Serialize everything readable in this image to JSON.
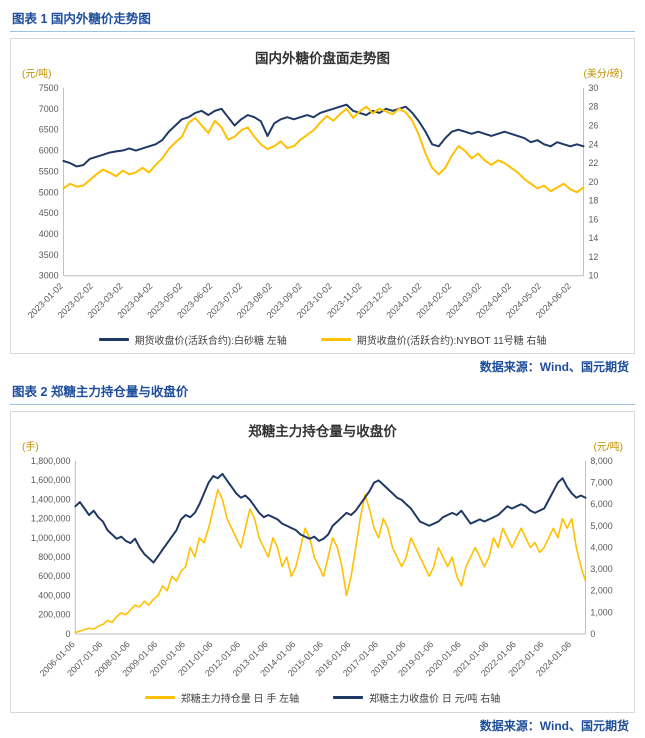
{
  "page": {
    "figure1_heading": "图表 1 国内外糖价走势图",
    "figure2_heading": "图表 2 郑糖主力持仓量与收盘价",
    "source1": "数据来源：Wind、国元期货",
    "source2": "数据来源：Wind、国元期货"
  },
  "colors": {
    "navy": "#1F3864",
    "gold": "#FFC000",
    "heading_blue": "#1F4E9C",
    "rule_blue": "#9CC2E5",
    "axis_gray": "#BFBFBF"
  },
  "chart_data": [
    {
      "type": "line",
      "title": "国内外糖价盘面走势图",
      "grid": false,
      "legend_position": "bottom",
      "left_axis": {
        "unit": "(元/吨)",
        "min": 3000,
        "max": 7500,
        "tick_values": [
          3000,
          3500,
          4000,
          4500,
          5000,
          5500,
          6000,
          6500,
          7000,
          7500
        ],
        "tick_labels": [
          "3000",
          "3500",
          "4000",
          "4500",
          "5000",
          "5500",
          "6000",
          "6500",
          "7000",
          "7500"
        ]
      },
      "right_axis": {
        "unit": "(美分/磅)",
        "min": 10,
        "max": 30,
        "tick_values": [
          10,
          12,
          14,
          16,
          18,
          20,
          22,
          24,
          26,
          28,
          30
        ],
        "tick_labels": [
          "10",
          "12",
          "14",
          "16",
          "18",
          "20",
          "22",
          "24",
          "26",
          "28",
          "30"
        ]
      },
      "x_labels": [
        "2023-01-02",
        "2023-02-02",
        "2023-03-02",
        "2023-04-02",
        "2023-05-02",
        "2023-06-02",
        "2023-07-02",
        "2023-08-02",
        "2023-09-02",
        "2023-10-02",
        "2023-11-02",
        "2023-12-02",
        "2024-01-02",
        "2024-02-02",
        "2024-03-02",
        "2024-04-02",
        "2024-05-02",
        "2024-06-02"
      ],
      "series": [
        {
          "name": "期货收盘价(活跃合约):白砂糖 左轴",
          "axis": "left",
          "color": "#1F3864",
          "width": 2,
          "values": [
            5750,
            5700,
            5620,
            5650,
            5800,
            5850,
            5900,
            5950,
            5980,
            6000,
            6050,
            6000,
            6050,
            6100,
            6150,
            6250,
            6450,
            6600,
            6750,
            6800,
            6900,
            6950,
            6850,
            6950,
            7000,
            6800,
            6600,
            6750,
            6850,
            6800,
            6700,
            6350,
            6650,
            6750,
            6800,
            6750,
            6800,
            6850,
            6800,
            6900,
            6950,
            7000,
            7050,
            7100,
            6950,
            6900,
            6850,
            6950,
            6900,
            7000,
            6950,
            7000,
            7050,
            6900,
            6700,
            6450,
            6150,
            6100,
            6300,
            6450,
            6500,
            6450,
            6400,
            6450,
            6400,
            6350,
            6400,
            6450,
            6400,
            6350,
            6300,
            6200,
            6250,
            6150,
            6100,
            6200,
            6150,
            6100,
            6150,
            6100
          ]
        },
        {
          "name": "期货收盘价(活跃合约):NYBOT 11号糖 右轴",
          "axis": "right",
          "color": "#FFC000",
          "width": 2,
          "values": [
            19.3,
            19.8,
            19.5,
            19.6,
            20.2,
            20.8,
            21.3,
            21.0,
            20.6,
            21.2,
            20.8,
            21.0,
            21.5,
            21.0,
            21.8,
            22.5,
            23.5,
            24.2,
            24.8,
            26.3,
            26.8,
            26.0,
            25.2,
            26.5,
            25.8,
            24.5,
            24.8,
            25.5,
            25.8,
            24.8,
            24.0,
            23.5,
            23.8,
            24.3,
            23.6,
            23.8,
            24.5,
            25.0,
            25.5,
            26.3,
            27.0,
            26.5,
            27.2,
            27.8,
            26.8,
            27.5,
            28.0,
            27.3,
            27.8,
            27.5,
            27.2,
            27.8,
            27.4,
            26.5,
            25.0,
            23.0,
            21.5,
            20.8,
            21.5,
            22.8,
            23.8,
            23.3,
            22.5,
            23.0,
            22.3,
            21.8,
            22.3,
            22.0,
            21.5,
            21.0,
            20.3,
            19.8,
            19.3,
            19.6,
            19.0,
            19.4,
            19.8,
            19.2,
            18.9,
            19.4
          ]
        }
      ]
    },
    {
      "type": "line",
      "title": "郑糖主力持仓量与收盘价",
      "grid": false,
      "legend_position": "bottom",
      "left_axis": {
        "unit": "(手)",
        "min": 0,
        "max": 1800000,
        "tick_values": [
          0,
          200000,
          400000,
          600000,
          800000,
          1000000,
          1200000,
          1400000,
          1600000,
          1800000
        ],
        "tick_labels": [
          "0",
          "200,000",
          "400,000",
          "600,000",
          "800,000",
          "1,000,000",
          "1,200,000",
          "1,400,000",
          "1,600,000",
          "1,800,000"
        ]
      },
      "right_axis": {
        "unit": "(元/吨)",
        "min": 0,
        "max": 8000,
        "tick_values": [
          0,
          1000,
          2000,
          3000,
          4000,
          5000,
          6000,
          7000,
          8000
        ],
        "tick_labels": [
          "0",
          "1,000",
          "2,000",
          "3,000",
          "4,000",
          "5,000",
          "6,000",
          "7,000",
          "8,000"
        ]
      },
      "x_labels": [
        "2006-01-06",
        "2007-01-06",
        "2008-01-06",
        "2009-01-06",
        "2010-01-06",
        "2011-01-06",
        "2012-01-06",
        "2013-01-06",
        "2014-01-06",
        "2015-01-06",
        "2016-01-06",
        "2017-01-06",
        "2018-01-06",
        "2019-01-06",
        "2020-01-06",
        "2021-01-06",
        "2022-01-06",
        "2023-01-06",
        "2024-01-06"
      ],
      "series": [
        {
          "name": "郑糖主力持仓量 日 手 左轴",
          "axis": "left",
          "color": "#FFC000",
          "width": 1.6,
          "values": [
            15000,
            30000,
            45000,
            60000,
            50000,
            80000,
            100000,
            140000,
            120000,
            180000,
            220000,
            200000,
            250000,
            300000,
            280000,
            340000,
            300000,
            360000,
            400000,
            500000,
            450000,
            600000,
            550000,
            650000,
            700000,
            900000,
            800000,
            1000000,
            950000,
            1100000,
            1300000,
            1500000,
            1400000,
            1200000,
            1100000,
            1000000,
            900000,
            1100000,
            1300000,
            1200000,
            1000000,
            900000,
            800000,
            1000000,
            900000,
            700000,
            800000,
            600000,
            700000,
            900000,
            1100000,
            1000000,
            800000,
            700000,
            600000,
            800000,
            1000000,
            900000,
            700000,
            400000,
            600000,
            900000,
            1200000,
            1450000,
            1300000,
            1100000,
            1000000,
            1200000,
            1100000,
            900000,
            800000,
            700000,
            800000,
            1000000,
            900000,
            800000,
            700000,
            600000,
            700000,
            900000,
            800000,
            700000,
            800000,
            600000,
            500000,
            700000,
            800000,
            900000,
            800000,
            700000,
            800000,
            1000000,
            900000,
            1100000,
            1000000,
            900000,
            1000000,
            1100000,
            1000000,
            900000,
            950000,
            850000,
            900000,
            1000000,
            1100000,
            1000000,
            1200000,
            1100000,
            1200000,
            900000,
            700000,
            550000
          ]
        },
        {
          "name": "郑糖主力收盘价 日 元/吨 右轴",
          "axis": "right",
          "color": "#1F3864",
          "width": 2,
          "values": [
            5900,
            6100,
            5800,
            5500,
            5700,
            5400,
            5200,
            4800,
            4600,
            4400,
            4500,
            4300,
            4200,
            4400,
            4000,
            3700,
            3500,
            3300,
            3600,
            3900,
            4200,
            4500,
            4800,
            5300,
            5500,
            5400,
            5600,
            6000,
            6500,
            7000,
            7300,
            7200,
            7400,
            7100,
            6800,
            6500,
            6300,
            6400,
            6200,
            5900,
            5600,
            5400,
            5500,
            5400,
            5300,
            5100,
            5000,
            4900,
            4800,
            4600,
            4500,
            4400,
            4500,
            4300,
            4400,
            4600,
            5000,
            5200,
            5400,
            5600,
            5500,
            5700,
            6000,
            6300,
            6600,
            7000,
            7100,
            6900,
            6700,
            6500,
            6300,
            6200,
            6000,
            5800,
            5500,
            5200,
            5100,
            5000,
            5100,
            5200,
            5400,
            5500,
            5600,
            5500,
            5700,
            5400,
            5100,
            5200,
            5300,
            5200,
            5300,
            5400,
            5500,
            5700,
            5900,
            5800,
            5900,
            6000,
            5900,
            5700,
            5600,
            5700,
            5800,
            6200,
            6600,
            7000,
            7200,
            6800,
            6500,
            6300,
            6400,
            6300
          ]
        }
      ]
    }
  ]
}
